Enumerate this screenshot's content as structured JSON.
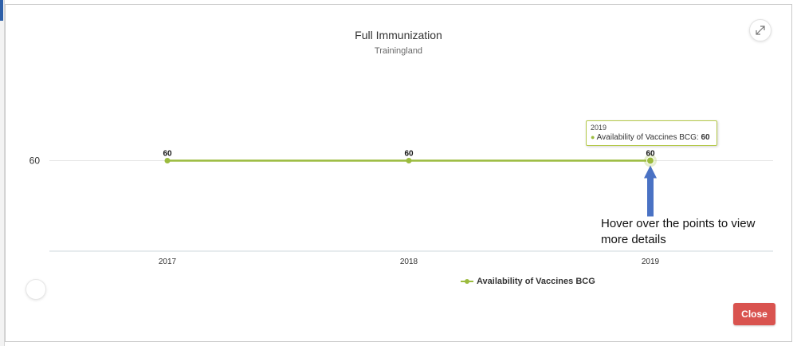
{
  "chart_data": {
    "type": "line",
    "title": "Full Immunization",
    "subtitle": "Trainingland",
    "categories": [
      "2017",
      "2018",
      "2019"
    ],
    "series": [
      {
        "name": "Availability of Vaccines BCG",
        "values": [
          60,
          60,
          60
        ],
        "color": "#9bbb3e"
      }
    ],
    "y_ticks": [
      60
    ],
    "data_labels": [
      "60",
      "60",
      "60"
    ],
    "grid": true,
    "legend": "bottom-center"
  },
  "tooltip": {
    "x": "2019",
    "series": "Availability of Vaccines BCG",
    "separator": ":",
    "value": "60"
  },
  "annotation": "Hover over the points to view more details",
  "close_label": "Close",
  "colors": {
    "series": "#9bbb3e",
    "arrow": "#4a72c4",
    "close_button": "#d9534f",
    "tooltip_border": "#b5c94a"
  },
  "icons": {
    "expand": "expand-arrows-icon"
  }
}
